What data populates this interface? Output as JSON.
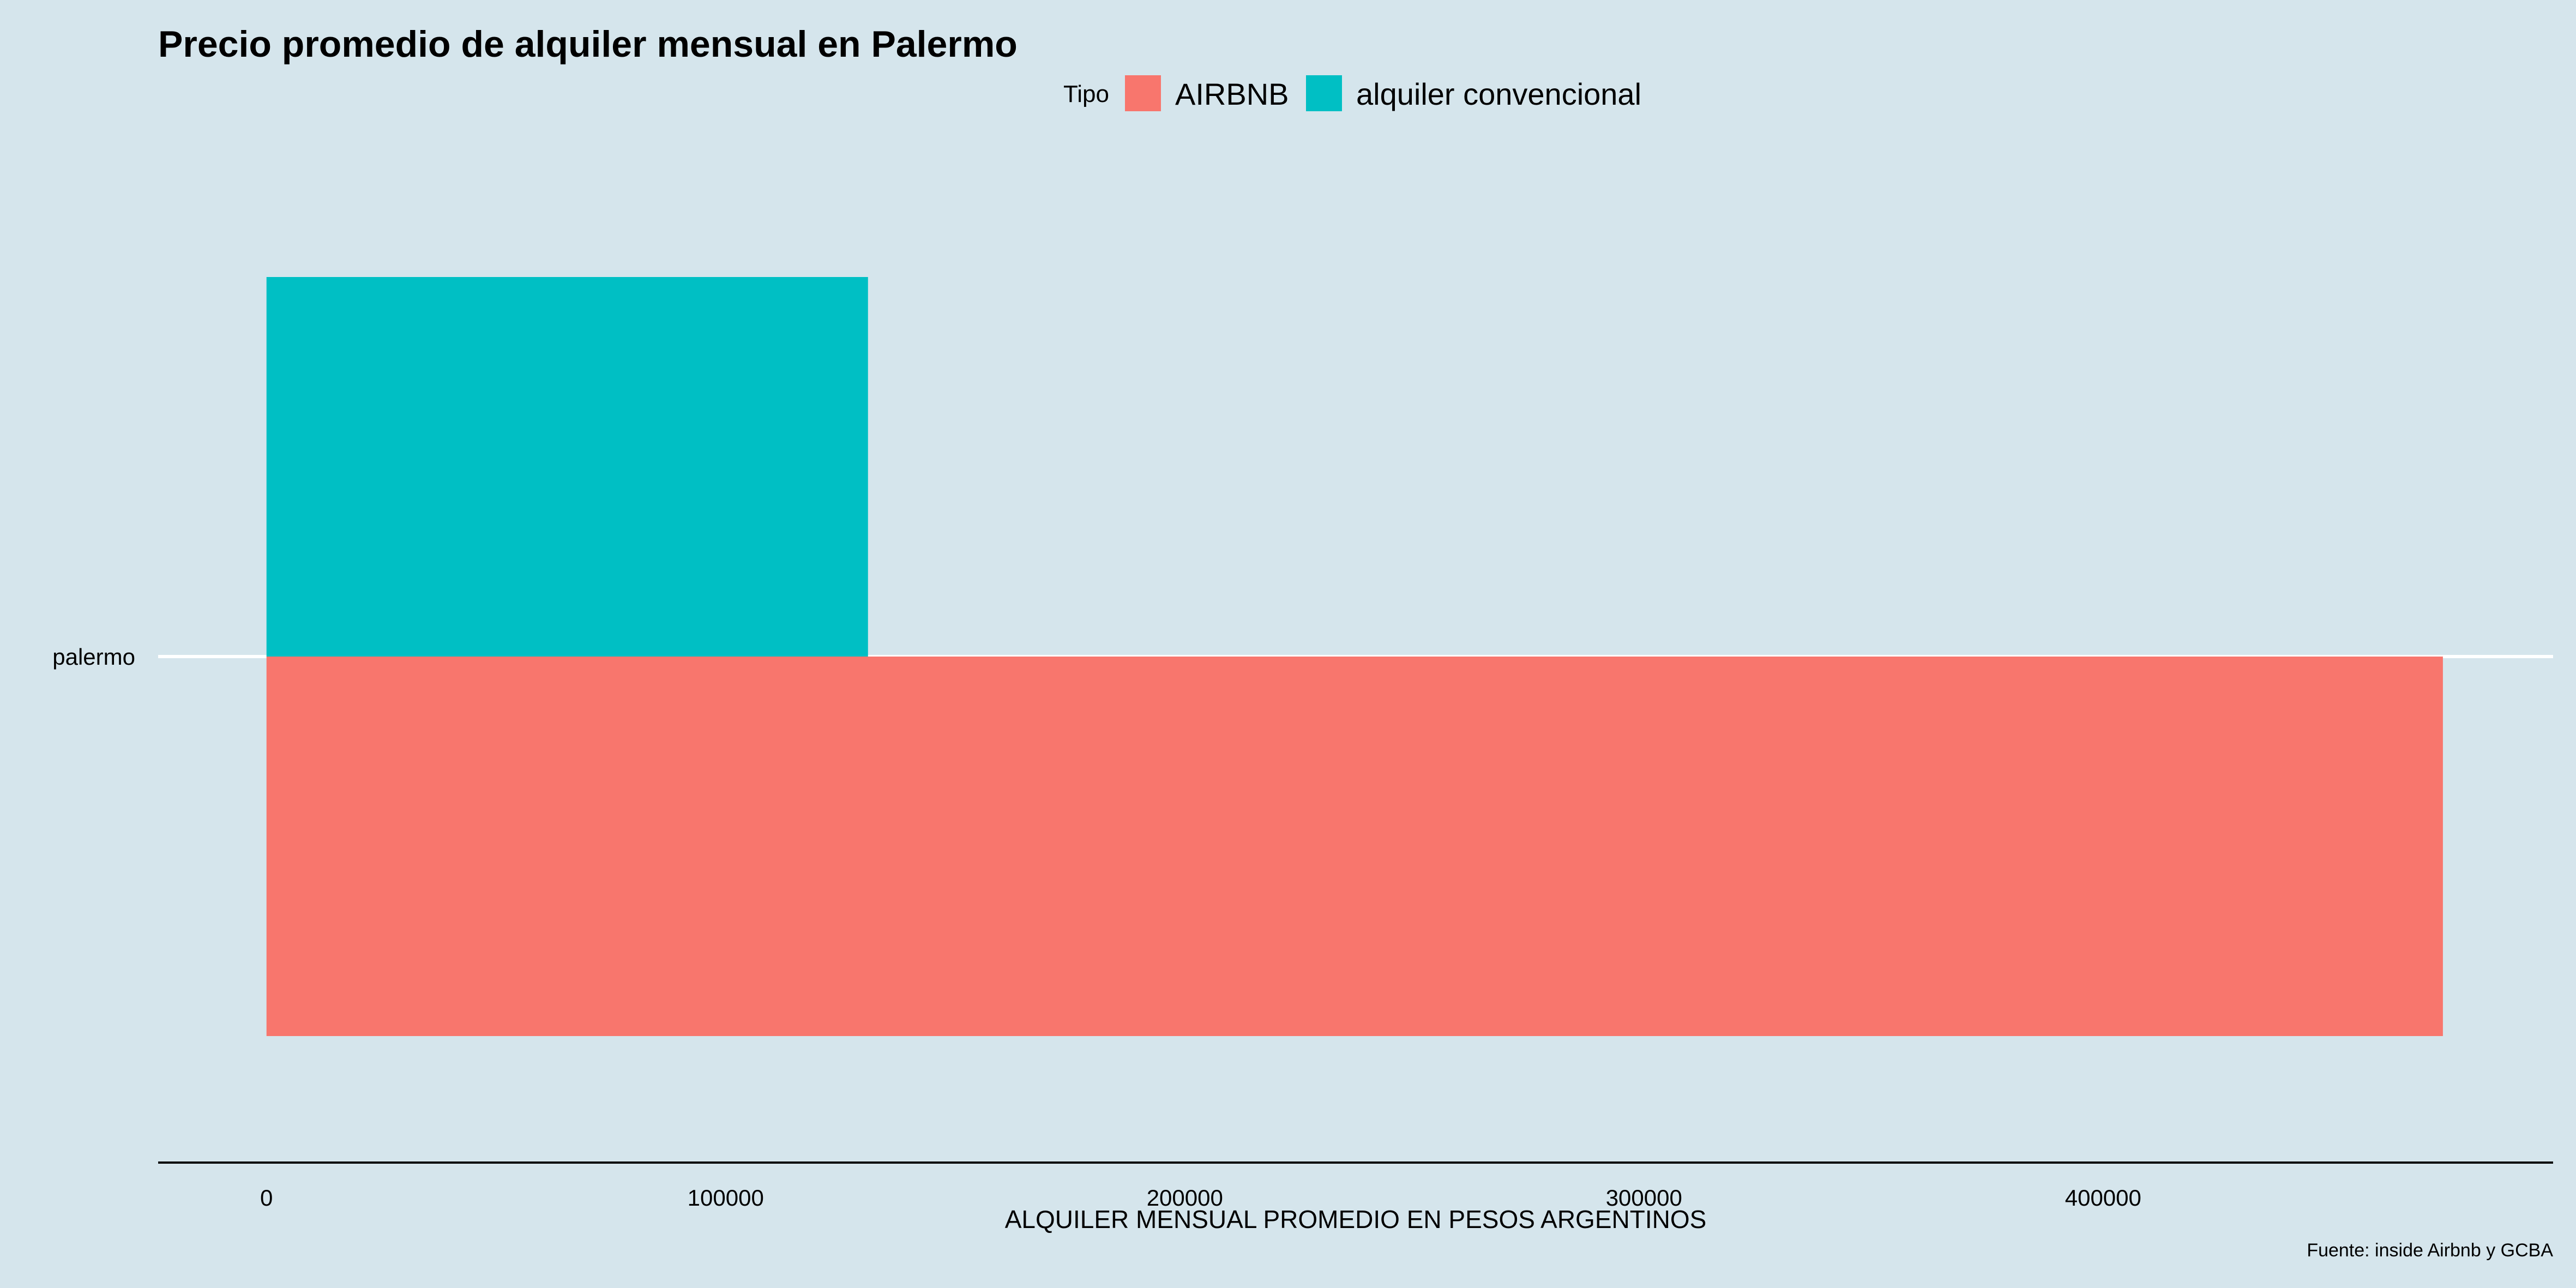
{
  "chart_data": {
    "type": "bar",
    "orientation": "horizontal",
    "position": "dodge",
    "title": "Precio promedio de alquiler mensual en Palermo",
    "xlabel": "ALQUILER MENSUAL PROMEDIO EN PESOS ARGENTINOS",
    "ylabel": "",
    "categories": [
      "palermo"
    ],
    "legend": {
      "title": "Tipo",
      "placement": "top"
    },
    "series": [
      {
        "name": "AIRBNB",
        "values": [
          474000
        ],
        "color": "#f8766d"
      },
      {
        "name": "alquiler convencional",
        "values": [
          131000
        ],
        "color": "#00bfc4"
      }
    ],
    "xticks": [
      0,
      100000,
      200000,
      300000,
      400000
    ],
    "xlim": [
      -23600,
      498000
    ],
    "grid": {
      "major_y": true,
      "major_x": false,
      "color": "#ffffff"
    },
    "background": "#d5e5ec",
    "caption": "Fuente: inside Airbnb y GCBA"
  }
}
